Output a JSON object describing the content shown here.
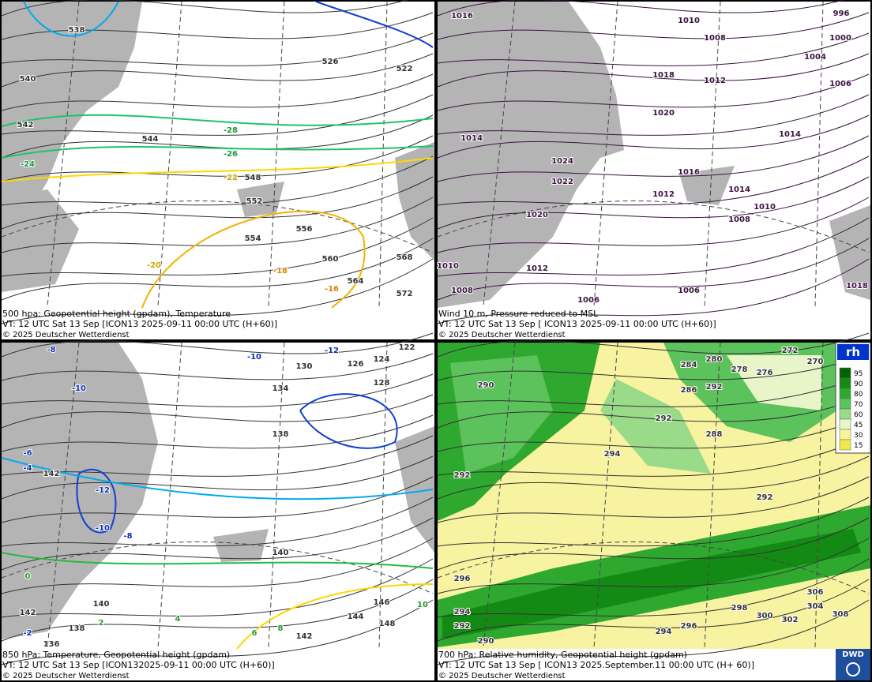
{
  "panels": [
    {
      "caption": [
        "500 hpa: Geopotential height (gpdam), Temperature",
        "VT: 12 UTC Sat  13 Sep [ICON13 2025-09-11 00:00 UTC  (H+60)]",
        "© 2025 Deutscher Wetterdienst"
      ],
      "labels": [
        "538",
        "540",
        "542",
        "544",
        "548",
        "552",
        "554",
        "556",
        "560",
        "564",
        "568",
        "572",
        "526",
        "522",
        "-28",
        "-26",
        "-24",
        "-22",
        "-20",
        "-18",
        "-16"
      ]
    },
    {
      "caption": [
        "Wind 10 m, Pressure reduced to MSL",
        "VT: 12 UTC Sat  13 Sep [ ICON13 2025-09-11 00:00 UTC  (H+60)]",
        "© 2025 Deutscher Wetterdienst"
      ],
      "labels": [
        "1016",
        "1010",
        "1008",
        "1004",
        "1000",
        "996",
        "1018",
        "1020",
        "1012",
        "1014",
        "1016",
        "1012",
        "1014",
        "1010",
        "1008",
        "1006",
        "1024",
        "1022",
        "1020",
        "1014",
        "1012",
        "1010",
        "1008",
        "1006",
        "1006",
        "1018"
      ]
    },
    {
      "caption": [
        "850 hPa:  Temperature, Geopotential height (gpdam)",
        "VT: 12 UTC Sat  13 Sep [ICON132025-09-11 00:00 UTC  (H+60)]",
        "© 2025 Deutscher Wetterdienst"
      ],
      "labels": [
        "-8",
        "-10",
        "-12",
        "-10",
        "-8",
        "-6",
        "-4",
        "-2",
        "0",
        "2",
        "4",
        "6",
        "8",
        "10",
        "142",
        "142",
        "136",
        "138",
        "140",
        "140",
        "142",
        "144",
        "146",
        "148",
        "138",
        "134",
        "130",
        "126",
        "124",
        "122",
        "128",
        "-12",
        "-10"
      ]
    },
    {
      "caption": [
        "700 hPa:  Relative humidity, Geopotential height (gpdam)",
        "VT: 12 UTC Sat  13 Sep [ ICON13  2025.September.11 00:00 UTC  (H+ 60)]",
        "© 2025 Deutscher Wetterdienst"
      ],
      "labels": [
        "290",
        "292",
        "294",
        "296",
        "294",
        "292",
        "290",
        "294",
        "296",
        "298",
        "300",
        "302",
        "304",
        "306",
        "308",
        "292",
        "288",
        "286",
        "284",
        "280",
        "278",
        "276",
        "272",
        "270",
        "292",
        "292"
      ],
      "legend": {
        "title": "rh",
        "items": [
          "95",
          "90",
          "80",
          "70",
          "60",
          "45",
          "30",
          "15"
        ],
        "colors": [
          "#006400",
          "#138a13",
          "#2fa82f",
          "#5cc25c",
          "#9adb8a",
          "#e8f5c8",
          "#f5f59a",
          "#f0e84a"
        ]
      },
      "logo": "DWD"
    }
  ]
}
